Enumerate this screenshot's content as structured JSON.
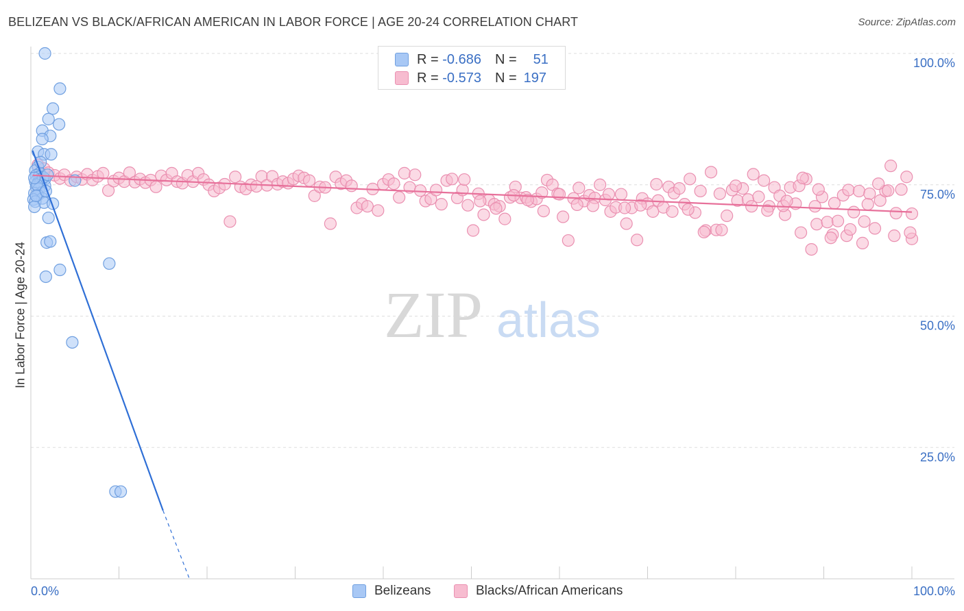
{
  "title": "BELIZEAN VS BLACK/AFRICAN AMERICAN IN LABOR FORCE | AGE 20-24 CORRELATION CHART",
  "source": "Source: ZipAtlas.com",
  "watermark": {
    "zip": "ZIP",
    "atlas": "atlas"
  },
  "legend": {
    "rows": [
      {
        "r_label": "R =",
        "r_value": "-0.686",
        "n_label": "N =",
        "n_value": "51",
        "color": "#a8c8f5",
        "stroke": "#6f9fe0"
      },
      {
        "r_label": "R =",
        "r_value": "-0.573",
        "n_label": "N =",
        "n_value": "197",
        "color": "#f7bcd0",
        "stroke": "#ea8fb0"
      }
    ]
  },
  "bottom_legend": [
    {
      "label": "Belizeans",
      "color": "#a8c8f5",
      "stroke": "#6f9fe0"
    },
    {
      "label": "Blacks/African Americans",
      "color": "#f7bcd0",
      "stroke": "#ea8fb0"
    }
  ],
  "chart_data": {
    "type": "scatter",
    "title": "BELIZEAN VS BLACK/AFRICAN AMERICAN IN LABOR FORCE | AGE 20-24 CORRELATION CHART",
    "xlabel": "",
    "ylabel": "In Labor Force | Age 20-24",
    "xlim": [
      0,
      100
    ],
    "ylim": [
      0,
      100
    ],
    "x_tick_labels": [
      "0.0%",
      "100.0%"
    ],
    "y_tick_labels": [
      "100.0%",
      "75.0%",
      "50.0%",
      "25.0%"
    ],
    "y_ticks": [
      100,
      75,
      50,
      25
    ],
    "grid": true,
    "series": [
      {
        "name": "Belizeans",
        "color": "#a8c8f5",
        "stroke": "#6f9fe0",
        "line_color": "#2f6fd6",
        "trend": {
          "x0": 0.2,
          "y0": 81.5,
          "x1": 15,
          "y1": 13,
          "dash_to_x": 18,
          "dash_to_y": 0
        },
        "points": [
          [
            1.6,
            100
          ],
          [
            3.3,
            93.3
          ],
          [
            2.5,
            89.5
          ],
          [
            3.2,
            86.5
          ],
          [
            2.0,
            87.5
          ],
          [
            1.3,
            85.3
          ],
          [
            2.2,
            84.3
          ],
          [
            1.3,
            83.7
          ],
          [
            0.8,
            81.3
          ],
          [
            1.5,
            80.8
          ],
          [
            2.3,
            80.8
          ],
          [
            0.8,
            78.4
          ],
          [
            0.5,
            77.7
          ],
          [
            1.0,
            77.2
          ],
          [
            0.6,
            76.8
          ],
          [
            0.9,
            76.5
          ],
          [
            1.3,
            76.1
          ],
          [
            1.0,
            76.0
          ],
          [
            1.6,
            76.1
          ],
          [
            0.5,
            75.6
          ],
          [
            0.8,
            75.3
          ],
          [
            1.1,
            75.4
          ],
          [
            1.6,
            74.8
          ],
          [
            0.6,
            74.6
          ],
          [
            0.9,
            74.2
          ],
          [
            1.2,
            73.5
          ],
          [
            0.4,
            73.4
          ],
          [
            0.8,
            73.0
          ],
          [
            1.3,
            72.4
          ],
          [
            0.3,
            72.2
          ],
          [
            0.5,
            71.8
          ],
          [
            1.5,
            71.6
          ],
          [
            2.5,
            71.4
          ],
          [
            0.4,
            70.8
          ],
          [
            2.0,
            68.7
          ],
          [
            1.8,
            64.0
          ],
          [
            2.2,
            64.2
          ],
          [
            3.3,
            58.8
          ],
          [
            1.7,
            57.5
          ],
          [
            8.9,
            60.0
          ],
          [
            4.7,
            45.0
          ],
          [
            9.6,
            16.6
          ],
          [
            10.2,
            16.6
          ],
          [
            5.0,
            75.8
          ],
          [
            1.4,
            76.4
          ],
          [
            0.7,
            75.0
          ],
          [
            1.9,
            76.9
          ],
          [
            0.4,
            76.3
          ],
          [
            1.1,
            79.3
          ],
          [
            0.6,
            72.9
          ],
          [
            1.7,
            73.8
          ]
        ]
      },
      {
        "name": "Blacks/African Americans",
        "color": "#f7bcd0",
        "stroke": "#ea8fb0",
        "line_color": "#e7709a",
        "trend": {
          "x0": 0.2,
          "y0": 76.8,
          "x1": 100,
          "y1": 69.8
        },
        "points": [
          [
            0.8,
            78.8
          ],
          [
            1.5,
            78.1
          ],
          [
            2.0,
            77.3
          ],
          [
            2.7,
            76.8
          ],
          [
            3.3,
            76.2
          ],
          [
            3.8,
            76.9
          ],
          [
            4.5,
            75.8
          ],
          [
            5.2,
            76.5
          ],
          [
            5.8,
            76.0
          ],
          [
            6.4,
            77.0
          ],
          [
            7.0,
            75.9
          ],
          [
            7.6,
            76.6
          ],
          [
            8.2,
            77.2
          ],
          [
            8.8,
            73.9
          ],
          [
            9.4,
            75.7
          ],
          [
            10.0,
            76.3
          ],
          [
            10.6,
            75.6
          ],
          [
            11.2,
            77.3
          ],
          [
            11.8,
            75.5
          ],
          [
            12.4,
            76.1
          ],
          [
            13.0,
            75.4
          ],
          [
            13.6,
            75.9
          ],
          [
            14.2,
            74.6
          ],
          [
            14.8,
            76.7
          ],
          [
            15.4,
            75.9
          ],
          [
            16.0,
            77.2
          ],
          [
            16.6,
            75.6
          ],
          [
            17.2,
            75.3
          ],
          [
            17.8,
            76.8
          ],
          [
            18.4,
            75.6
          ],
          [
            19.0,
            77.2
          ],
          [
            19.6,
            76.0
          ],
          [
            20.2,
            75.0
          ],
          [
            20.8,
            73.8
          ],
          [
            21.4,
            74.4
          ],
          [
            22.0,
            75.1
          ],
          [
            22.6,
            68.0
          ],
          [
            23.2,
            76.5
          ],
          [
            23.8,
            74.6
          ],
          [
            24.4,
            74.2
          ],
          [
            25.0,
            75.0
          ],
          [
            25.6,
            74.7
          ],
          [
            26.2,
            76.6
          ],
          [
            26.8,
            74.9
          ],
          [
            27.4,
            76.6
          ],
          [
            28.0,
            75.1
          ],
          [
            28.6,
            75.6
          ],
          [
            29.2,
            75.3
          ],
          [
            29.8,
            76.1
          ],
          [
            30.4,
            76.7
          ],
          [
            31.0,
            76.3
          ],
          [
            31.6,
            75.8
          ],
          [
            32.2,
            72.9
          ],
          [
            32.8,
            74.6
          ],
          [
            33.4,
            74.5
          ],
          [
            34.0,
            67.6
          ],
          [
            34.6,
            76.5
          ],
          [
            35.2,
            75.2
          ],
          [
            35.8,
            75.8
          ],
          [
            36.4,
            74.8
          ],
          [
            37.0,
            70.6
          ],
          [
            37.6,
            71.4
          ],
          [
            38.2,
            70.9
          ],
          [
            38.8,
            74.2
          ],
          [
            39.4,
            70.1
          ],
          [
            40.0,
            75.1
          ],
          [
            40.6,
            76.0
          ],
          [
            41.2,
            75.2
          ],
          [
            41.8,
            72.6
          ],
          [
            42.4,
            77.2
          ],
          [
            43.0,
            74.5
          ],
          [
            43.6,
            76.9
          ],
          [
            44.2,
            73.9
          ],
          [
            44.8,
            71.9
          ],
          [
            45.4,
            72.3
          ],
          [
            46.0,
            74.0
          ],
          [
            46.6,
            71.3
          ],
          [
            47.2,
            75.8
          ],
          [
            47.8,
            76.1
          ],
          [
            48.4,
            72.5
          ],
          [
            49.0,
            74.0
          ],
          [
            49.6,
            71.1
          ],
          [
            50.2,
            66.3
          ],
          [
            50.8,
            73.3
          ],
          [
            51.4,
            69.3
          ],
          [
            52.0,
            72.1
          ],
          [
            52.6,
            71.3
          ],
          [
            53.2,
            70.9
          ],
          [
            53.8,
            68.5
          ],
          [
            54.4,
            72.6
          ],
          [
            55.0,
            74.6
          ],
          [
            55.6,
            72.5
          ],
          [
            56.2,
            72.6
          ],
          [
            56.8,
            71.8
          ],
          [
            57.4,
            72.3
          ],
          [
            58.0,
            73.5
          ],
          [
            58.6,
            75.9
          ],
          [
            59.2,
            75.0
          ],
          [
            59.8,
            73.3
          ],
          [
            60.4,
            68.9
          ],
          [
            61.0,
            64.4
          ],
          [
            61.6,
            72.4
          ],
          [
            62.2,
            74.4
          ],
          [
            62.8,
            71.9
          ],
          [
            63.4,
            73.0
          ],
          [
            64.0,
            72.5
          ],
          [
            64.6,
            75.0
          ],
          [
            65.2,
            72.1
          ],
          [
            65.8,
            69.9
          ],
          [
            66.4,
            70.7
          ],
          [
            67.0,
            73.2
          ],
          [
            67.6,
            67.6
          ],
          [
            68.2,
            70.6
          ],
          [
            68.8,
            64.5
          ],
          [
            69.4,
            72.4
          ],
          [
            70.0,
            71.4
          ],
          [
            70.6,
            69.9
          ],
          [
            71.2,
            72.0
          ],
          [
            71.8,
            70.7
          ],
          [
            72.4,
            74.6
          ],
          [
            73.0,
            73.4
          ],
          [
            73.6,
            74.3
          ],
          [
            74.2,
            71.3
          ],
          [
            74.8,
            76.1
          ],
          [
            75.4,
            69.7
          ],
          [
            76.0,
            73.8
          ],
          [
            76.6,
            66.3
          ],
          [
            77.2,
            77.4
          ],
          [
            77.8,
            66.4
          ],
          [
            78.4,
            66.4
          ],
          [
            79.0,
            69.1
          ],
          [
            79.6,
            74.0
          ],
          [
            80.2,
            72.0
          ],
          [
            80.8,
            74.3
          ],
          [
            81.4,
            72.2
          ],
          [
            82.0,
            77.0
          ],
          [
            82.6,
            72.7
          ],
          [
            83.2,
            75.8
          ],
          [
            83.8,
            70.9
          ],
          [
            84.4,
            74.5
          ],
          [
            85.0,
            72.9
          ],
          [
            85.6,
            69.3
          ],
          [
            86.2,
            74.5
          ],
          [
            86.8,
            71.4
          ],
          [
            87.4,
            65.9
          ],
          [
            88.0,
            76.1
          ],
          [
            88.6,
            62.7
          ],
          [
            89.2,
            67.5
          ],
          [
            89.8,
            72.7
          ],
          [
            90.4,
            67.9
          ],
          [
            91.0,
            65.5
          ],
          [
            91.6,
            68.1
          ],
          [
            92.2,
            73.0
          ],
          [
            92.8,
            74.0
          ],
          [
            93.4,
            69.8
          ],
          [
            94.0,
            73.8
          ],
          [
            94.6,
            68.0
          ],
          [
            95.2,
            73.3
          ],
          [
            95.8,
            66.7
          ],
          [
            96.4,
            72.0
          ],
          [
            97.0,
            73.8
          ],
          [
            97.6,
            78.6
          ],
          [
            98.2,
            69.6
          ],
          [
            98.8,
            74.1
          ],
          [
            99.4,
            76.5
          ],
          [
            100.0,
            64.7
          ],
          [
            49.2,
            76.0
          ],
          [
            51.0,
            71.9
          ],
          [
            52.8,
            70.5
          ],
          [
            54.8,
            73.0
          ],
          [
            56.4,
            72.1
          ],
          [
            58.2,
            70.0
          ],
          [
            60.0,
            73.2
          ],
          [
            62.0,
            71.2
          ],
          [
            63.8,
            71.0
          ],
          [
            65.6,
            73.2
          ],
          [
            67.4,
            70.6
          ],
          [
            69.2,
            71.1
          ],
          [
            71.0,
            75.1
          ],
          [
            72.8,
            69.9
          ],
          [
            74.6,
            70.3
          ],
          [
            76.4,
            66.0
          ],
          [
            78.2,
            73.3
          ],
          [
            80.0,
            74.8
          ],
          [
            81.8,
            70.9
          ],
          [
            83.6,
            70.1
          ],
          [
            85.4,
            71.0
          ],
          [
            87.2,
            74.8
          ],
          [
            89.0,
            70.9
          ],
          [
            90.8,
            64.9
          ],
          [
            92.6,
            65.3
          ],
          [
            94.4,
            63.9
          ],
          [
            96.2,
            75.2
          ],
          [
            98.0,
            65.3
          ],
          [
            99.8,
            65.9
          ],
          [
            97.3,
            73.9
          ],
          [
            95.0,
            71.3
          ],
          [
            93.0,
            66.5
          ],
          [
            91.2,
            71.5
          ],
          [
            89.4,
            74.1
          ],
          [
            87.6,
            76.3
          ],
          [
            85.8,
            71.9
          ],
          [
            100.0,
            69.5
          ]
        ]
      }
    ]
  }
}
